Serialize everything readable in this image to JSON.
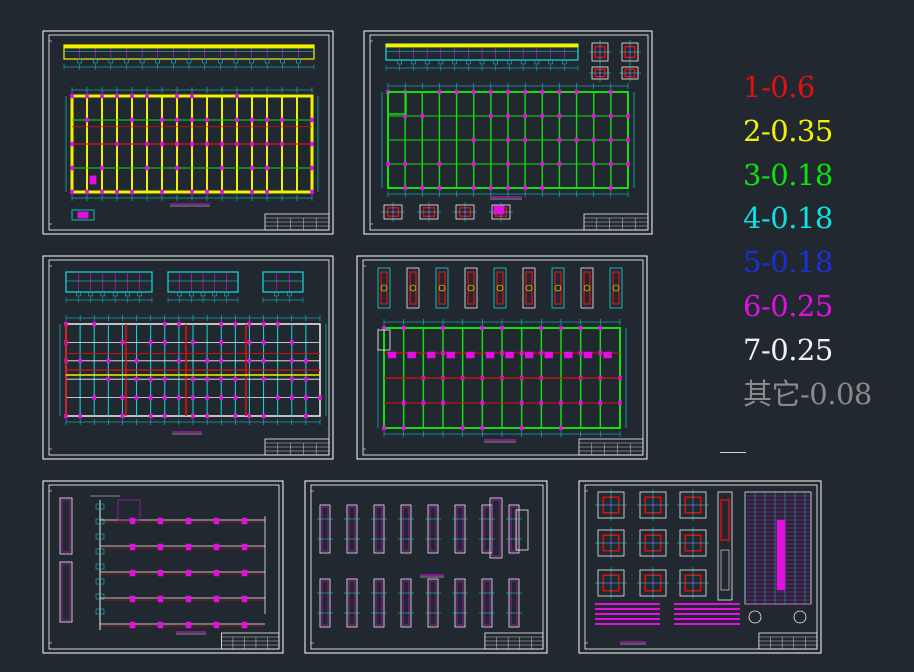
{
  "legend": {
    "items": [
      {
        "label": "1-0.6",
        "color": "#e01010"
      },
      {
        "label": "2-0.35",
        "color": "#f2f200"
      },
      {
        "label": "3-0.18",
        "color": "#10e010"
      },
      {
        "label": "4-0.18",
        "color": "#10e0e0"
      },
      {
        "label": "5-0.18",
        "color": "#1a2fd8"
      },
      {
        "label": "6-0.25",
        "color": "#e010e0"
      },
      {
        "label": "7-0.25",
        "color": "#f2f2f2"
      },
      {
        "label": "其它-0.08",
        "color": "#8a8a8a"
      }
    ]
  },
  "colors": {
    "background": "#212830",
    "sheet_border": "#ffffff",
    "red": "#e01010",
    "yellow": "#f2f200",
    "green": "#10e010",
    "cyan": "#10e0e0",
    "blue": "#1a2fd8",
    "magenta": "#e010e0",
    "white": "#f2f2f2"
  }
}
